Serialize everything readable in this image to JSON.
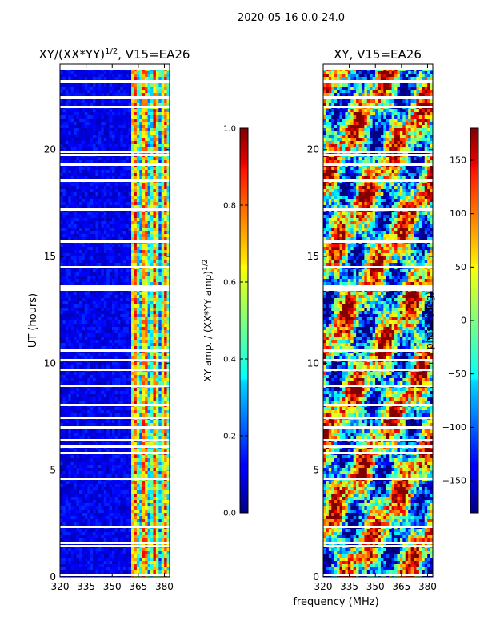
{
  "figure": {
    "suptitle": "2020-05-16 0.0-24.0",
    "xlabel": "frequency (MHz)"
  },
  "chart_data": [
    {
      "type": "heatmap",
      "title": "XY/(XX*YY)$^{1/2}$, V15=EA26",
      "title_main": "XY/(XX*YY)",
      "title_sup": "1/2",
      "title_tail": ", V15=EA26",
      "ylabel": "UT (hours)",
      "xlim": [
        320,
        383
      ],
      "ylim": [
        0,
        24
      ],
      "xticks": [
        320,
        335,
        350,
        365,
        380
      ],
      "yticks": [
        0,
        5,
        10,
        15,
        20
      ],
      "colorbar": {
        "label_main": "XY amp. / (XX*YY amp)",
        "label_sup": "1/2",
        "range": [
          0.0,
          1.0
        ],
        "ticks": [
          "0.0",
          "0.2",
          "0.4",
          "0.6",
          "0.8",
          "1.0"
        ],
        "colormap": "jet"
      },
      "description": "amplitude ratio mostly ~0 below 361 MHz; bright (0.4-1.0) emission bands between ~361 and 383 MHz"
    },
    {
      "type": "heatmap",
      "title": "XY, V15=EA26",
      "ylabel": "",
      "xlim": [
        320,
        383
      ],
      "ylim": [
        0,
        24
      ],
      "xticks": [
        320,
        335,
        350,
        365,
        380
      ],
      "yticks": [
        0,
        5,
        10,
        15,
        20
      ],
      "colorbar": {
        "label": "phase (deg)",
        "range": [
          -180,
          180
        ],
        "ticks": [
          "150",
          "100",
          "50",
          "0",
          "−50",
          "−100",
          "−150"
        ],
        "colormap": "jet"
      },
      "description": "noisy XY phase across full band and time range"
    }
  ],
  "colors": {
    "jet_low": "#00007f",
    "jet_mid": "#7fff7f",
    "jet_high": "#7f0000",
    "flag": "#ffffff"
  }
}
